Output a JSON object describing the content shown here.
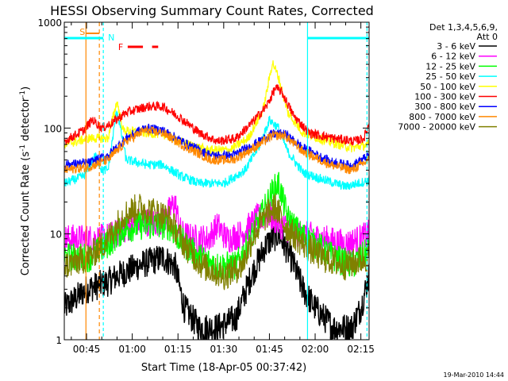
{
  "chart_data": {
    "type": "line",
    "title": "HESSI Observing Summary Count Rates, Corrected",
    "xlabel": "Start Time (18-Apr-05 00:37:42)",
    "ylabel_main": "Corrected Count Rate (s",
    "ylabel_sup1": "-1",
    "ylabel_mid": " detector",
    "ylabel_sup2": "-1",
    "ylabel_end": ")",
    "y_scale": "log",
    "ylim": [
      1,
      1000
    ],
    "xlim_minutes": [
      37.7,
      137.7
    ],
    "y_ticks": [
      {
        "value": 1,
        "label": "1"
      },
      {
        "value": 10,
        "label": "10"
      },
      {
        "value": 100,
        "label": "100"
      },
      {
        "value": 1000,
        "label": "1000"
      }
    ],
    "x_ticks": [
      {
        "minute": 45,
        "label": "00:45"
      },
      {
        "minute": 60,
        "label": "01:00"
      },
      {
        "minute": 75,
        "label": "01:15"
      },
      {
        "minute": 90,
        "label": "01:30"
      },
      {
        "minute": 105,
        "label": "01:45"
      },
      {
        "minute": 120,
        "label": "02:00"
      },
      {
        "minute": 135,
        "label": "02:15"
      }
    ],
    "legend_header": [
      "Det 1,3,4,5,6,9,",
      "Att 0"
    ],
    "series": [
      {
        "name": "3 - 6 keV",
        "color": "#000000",
        "knots": [
          [
            37.7,
            2
          ],
          [
            45,
            3
          ],
          [
            52,
            3.5
          ],
          [
            55,
            4
          ],
          [
            62,
            5
          ],
          [
            70,
            6
          ],
          [
            74,
            5
          ],
          [
            77,
            2
          ],
          [
            82,
            1.3
          ],
          [
            88,
            1.3
          ],
          [
            94,
            1.6
          ],
          [
            99,
            4
          ],
          [
            104,
            8
          ],
          [
            108,
            10
          ],
          [
            112,
            6
          ],
          [
            116,
            3
          ],
          [
            120,
            2
          ],
          [
            126,
            1.3
          ],
          [
            132,
            1.3
          ],
          [
            135,
            2
          ],
          [
            137.7,
            4
          ]
        ]
      },
      {
        "name": "6 - 12 keV",
        "color": "#ff00ff",
        "knots": [
          [
            37.7,
            9
          ],
          [
            50,
            9
          ],
          [
            55,
            10
          ],
          [
            62,
            13
          ],
          [
            70,
            13
          ],
          [
            74,
            20
          ],
          [
            76,
            10
          ],
          [
            80,
            9
          ],
          [
            85,
            9
          ],
          [
            88,
            12
          ],
          [
            91,
            9
          ],
          [
            96,
            10
          ],
          [
            101,
            14
          ],
          [
            105,
            15
          ],
          [
            109,
            12
          ],
          [
            115,
            10
          ],
          [
            122,
            9
          ],
          [
            130,
            8
          ],
          [
            135,
            9
          ],
          [
            137.7,
            10
          ]
        ]
      },
      {
        "name": "12 - 25 keV",
        "color": "#00ff00",
        "knots": [
          [
            37.7,
            6
          ],
          [
            46,
            6
          ],
          [
            52,
            8
          ],
          [
            57,
            11
          ],
          [
            62,
            12
          ],
          [
            68,
            12
          ],
          [
            72,
            12
          ],
          [
            77,
            8
          ],
          [
            82,
            6
          ],
          [
            88,
            5
          ],
          [
            94,
            5
          ],
          [
            98,
            8
          ],
          [
            102,
            14
          ],
          [
            106,
            25
          ],
          [
            108,
            30
          ],
          [
            111,
            14
          ],
          [
            115,
            10
          ],
          [
            120,
            8
          ],
          [
            126,
            6
          ],
          [
            132,
            5
          ],
          [
            137.7,
            7
          ]
        ]
      },
      {
        "name": "25 - 50 keV",
        "color": "#00ffff",
        "knots": [
          [
            37.7,
            30
          ],
          [
            44,
            35
          ],
          [
            48,
            55
          ],
          [
            50,
            40
          ],
          [
            52,
            40
          ],
          [
            55,
            150
          ],
          [
            58,
            50
          ],
          [
            65,
            45
          ],
          [
            70,
            45
          ],
          [
            76,
            35
          ],
          [
            82,
            30
          ],
          [
            90,
            30
          ],
          [
            97,
            40
          ],
          [
            102,
            70
          ],
          [
            105,
            120
          ],
          [
            108,
            100
          ],
          [
            111,
            60
          ],
          [
            116,
            38
          ],
          [
            122,
            33
          ],
          [
            130,
            28
          ],
          [
            137.7,
            32
          ]
        ]
      },
      {
        "name": "50 - 100 keV",
        "color": "#ffff00",
        "knots": [
          [
            37.7,
            70
          ],
          [
            46,
            80
          ],
          [
            52,
            80
          ],
          [
            55,
            180
          ],
          [
            57,
            95
          ],
          [
            64,
            90
          ],
          [
            70,
            88
          ],
          [
            78,
            70
          ],
          [
            85,
            62
          ],
          [
            92,
            62
          ],
          [
            98,
            80
          ],
          [
            103,
            150
          ],
          [
            106,
            420
          ],
          [
            108,
            300
          ],
          [
            111,
            140
          ],
          [
            116,
            90
          ],
          [
            124,
            75
          ],
          [
            132,
            65
          ],
          [
            137.7,
            70
          ]
        ]
      },
      {
        "name": "100 - 300 keV",
        "color": "#ff0000",
        "knots": [
          [
            37.7,
            75
          ],
          [
            44,
            95
          ],
          [
            47,
            120
          ],
          [
            50,
            100
          ],
          [
            53,
            110
          ],
          [
            58,
            140
          ],
          [
            65,
            160
          ],
          [
            70,
            160
          ],
          [
            75,
            130
          ],
          [
            82,
            90
          ],
          [
            88,
            75
          ],
          [
            94,
            80
          ],
          [
            99,
            110
          ],
          [
            104,
            160
          ],
          [
            107,
            240
          ],
          [
            109,
            220
          ],
          [
            113,
            130
          ],
          [
            118,
            90
          ],
          [
            126,
            80
          ],
          [
            133,
            75
          ],
          [
            136,
            80
          ],
          [
            137.7,
            110
          ]
        ]
      },
      {
        "name": "300 - 800 keV",
        "color": "#0000ff",
        "knots": [
          [
            37.7,
            45
          ],
          [
            46,
            47
          ],
          [
            52,
            55
          ],
          [
            58,
            80
          ],
          [
            64,
            100
          ],
          [
            70,
            95
          ],
          [
            78,
            70
          ],
          [
            86,
            55
          ],
          [
            93,
            55
          ],
          [
            100,
            70
          ],
          [
            106,
            88
          ],
          [
            110,
            88
          ],
          [
            116,
            65
          ],
          [
            125,
            48
          ],
          [
            132,
            44
          ],
          [
            137.7,
            55
          ]
        ]
      },
      {
        "name": "800 - 7000 keV",
        "color": "#ff8800",
        "knots": [
          [
            37.7,
            40
          ],
          [
            46,
            43
          ],
          [
            52,
            50
          ],
          [
            58,
            75
          ],
          [
            64,
            95
          ],
          [
            70,
            90
          ],
          [
            78,
            65
          ],
          [
            86,
            50
          ],
          [
            93,
            50
          ],
          [
            100,
            65
          ],
          [
            106,
            85
          ],
          [
            110,
            85
          ],
          [
            116,
            60
          ],
          [
            125,
            45
          ],
          [
            132,
            40
          ],
          [
            137.7,
            50
          ]
        ]
      },
      {
        "name": "7000 - 20000 keV",
        "color": "#808000",
        "knots": [
          [
            37.7,
            5
          ],
          [
            46,
            6
          ],
          [
            52,
            9
          ],
          [
            57,
            15
          ],
          [
            62,
            18
          ],
          [
            68,
            16
          ],
          [
            72,
            14
          ],
          [
            77,
            8
          ],
          [
            83,
            5
          ],
          [
            90,
            4
          ],
          [
            96,
            5
          ],
          [
            100,
            10
          ],
          [
            104,
            15
          ],
          [
            107,
            18
          ],
          [
            110,
            12
          ],
          [
            116,
            8
          ],
          [
            122,
            6
          ],
          [
            130,
            5
          ],
          [
            137.7,
            6
          ]
        ]
      }
    ],
    "overlays": {
      "saa_label": "S",
      "night_label": "N",
      "flare_label": "F",
      "saa_color": "#ff8800",
      "night_color": "#00ffff",
      "flare_color": "#ff0000",
      "saa_minutes": [
        44.8,
        49.2
      ],
      "night_bars": [
        [
          37.7,
          50.5
        ],
        [
          117.5,
          137.7
        ]
      ],
      "night_vlines": [
        50.5,
        117.5,
        137.0
      ],
      "flare_bars": [
        [
          58.5,
          63.5
        ],
        [
          66.5,
          68.5
        ]
      ]
    }
  },
  "footer": {
    "timestamp": "19-Mar-2010 14:44"
  }
}
